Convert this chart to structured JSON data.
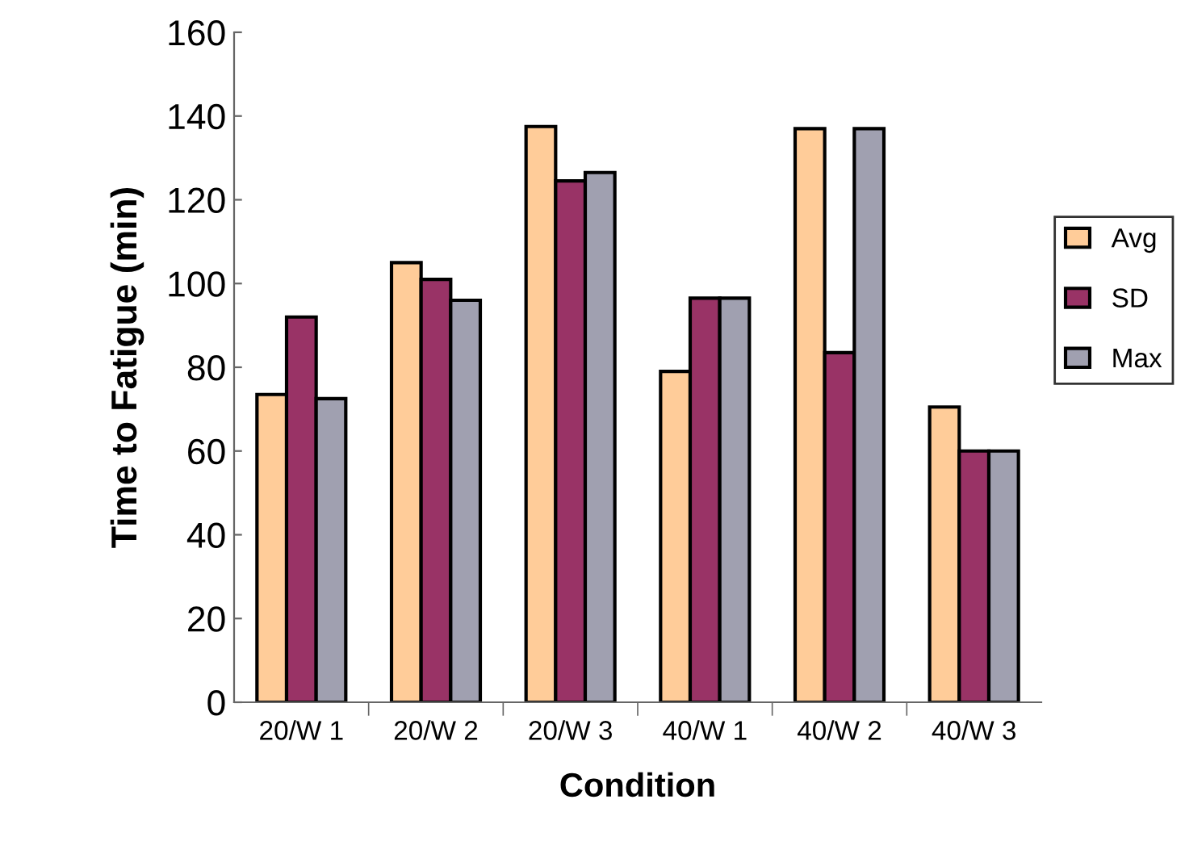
{
  "chart_data": {
    "type": "bar",
    "xlabel": "Condition",
    "ylabel": "Time to Fatigue (min)",
    "categories": [
      "20/W 1",
      "20/W 2",
      "20/W 3",
      "40/W 1",
      "40/W 2",
      "40/W 3"
    ],
    "series": [
      {
        "name": "Avg",
        "color": "#ffcc99",
        "values": [
          73.5,
          105,
          137.5,
          79,
          137,
          70.5
        ]
      },
      {
        "name": "SD",
        "color": "#993366",
        "values": [
          92,
          101,
          124.5,
          96.5,
          83.5,
          60
        ]
      },
      {
        "name": "Max",
        "color": "#a0a0b0",
        "values": [
          72.5,
          96,
          126.5,
          96.5,
          137,
          60
        ]
      }
    ],
    "ylim": [
      0,
      160
    ],
    "yticks": [
      0,
      20,
      40,
      60,
      80,
      100,
      120,
      140,
      160
    ],
    "grid": false,
    "legend": "right"
  }
}
